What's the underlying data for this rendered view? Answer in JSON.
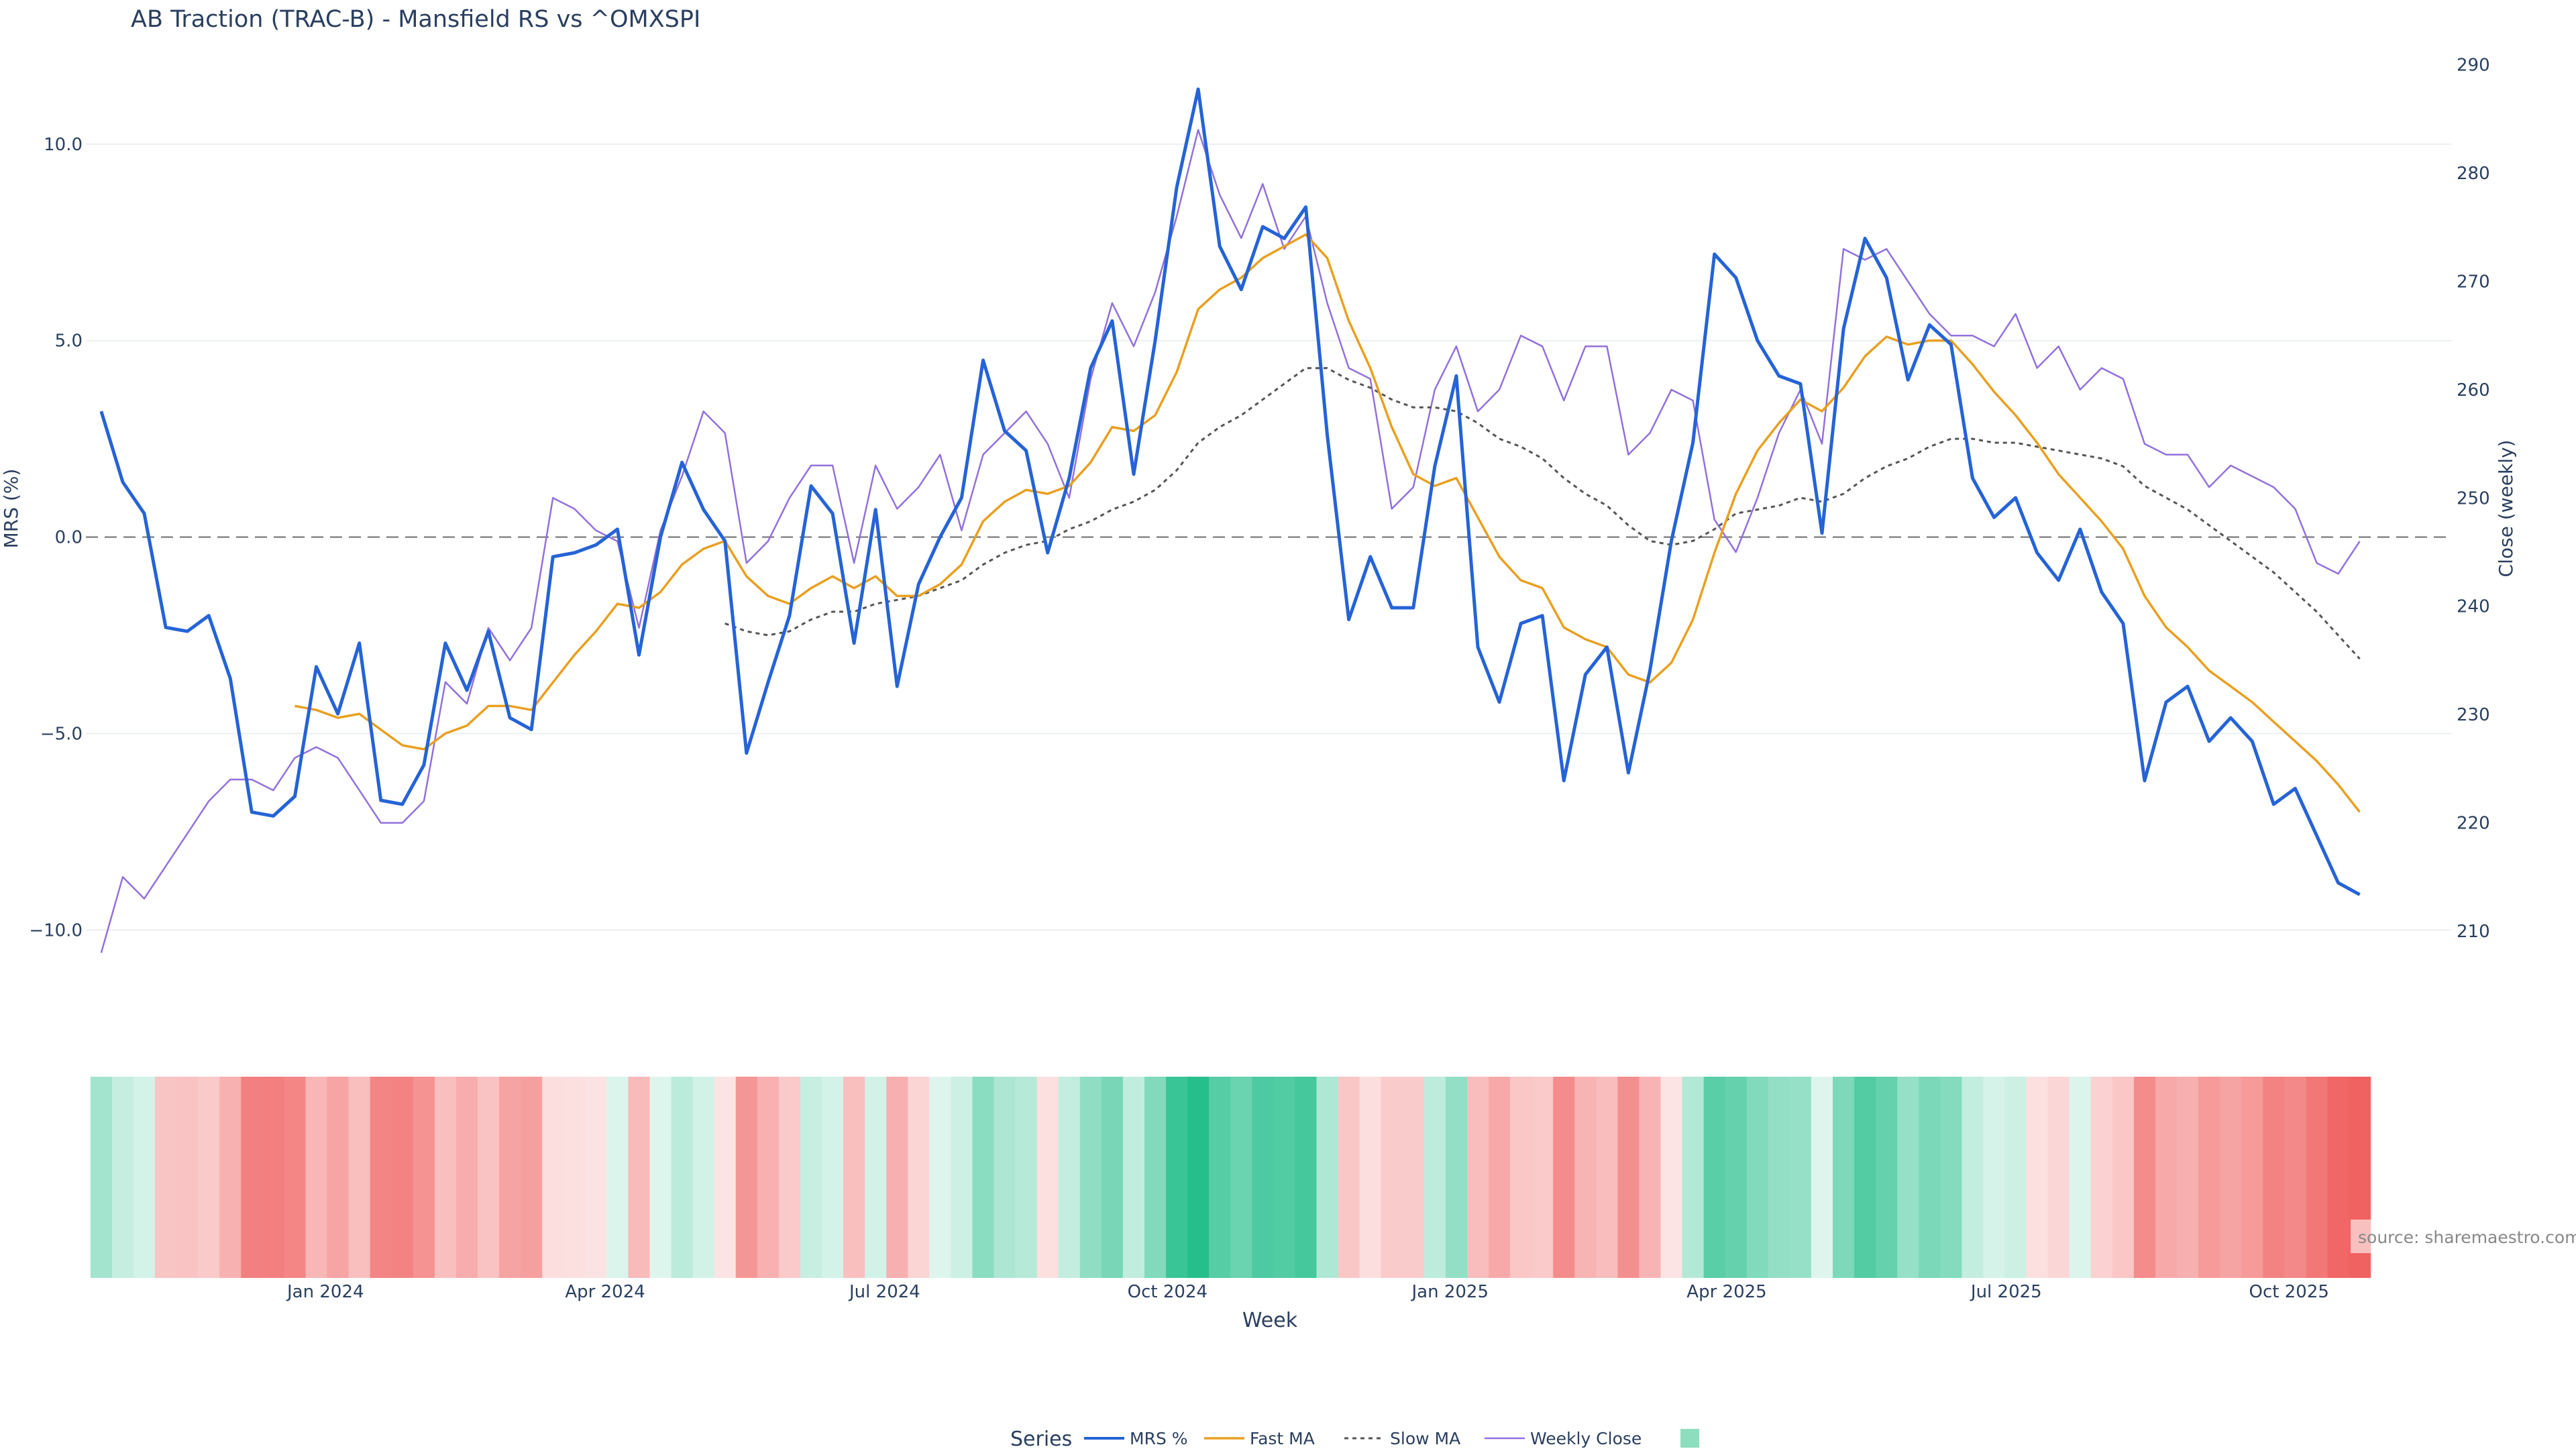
{
  "chart_data": {
    "type": "line",
    "title": "AB Traction (TRAC-B) - Mansfield RS vs ^OMXSPI",
    "xlabel": "Week",
    "ylabel_left": "MRS (%)",
    "ylabel_right": "Close (weekly)",
    "source": "source: sharemaestro.com",
    "legend_title": "Series",
    "legend_position": "bottom-center",
    "grid": true,
    "ylim_left": [
      -11.6,
      12.9
    ],
    "ylim_right": [
      204.3,
      293.2
    ],
    "yticks_left": [
      10.0,
      5.0,
      0.0,
      -5.0,
      -10.0
    ],
    "yticks_left_labels": [
      "10.0",
      "5.0",
      "0.0",
      "−5.0",
      "−10.0"
    ],
    "yticks_right": [
      290,
      280,
      270,
      260,
      250,
      240,
      230,
      220,
      210
    ],
    "x_start": "2023-10-20",
    "x_step_days": 7,
    "xlim": [
      "2023-10-15",
      "2025-11-23"
    ],
    "xticks": [
      {
        "date": "2024-01-01",
        "label": "Jan 2024"
      },
      {
        "date": "2024-04-01",
        "label": "Apr 2024"
      },
      {
        "date": "2024-07-01",
        "label": "Jul 2024"
      },
      {
        "date": "2024-10-01",
        "label": "Oct 2024"
      },
      {
        "date": "2025-01-01",
        "label": "Jan 2025"
      },
      {
        "date": "2025-04-01",
        "label": "Apr 2025"
      },
      {
        "date": "2025-07-01",
        "label": "Jul 2025"
      },
      {
        "date": "2025-10-01",
        "label": "Oct 2025"
      }
    ],
    "zero_line": 0,
    "series": [
      {
        "name": "MRS %",
        "axis": "left",
        "color": "#2563d6",
        "style": "solid-thick",
        "values": [
          3.2,
          1.4,
          0.6,
          -2.3,
          -2.4,
          -2.0,
          -3.6,
          -7.0,
          -7.1,
          -6.6,
          -3.3,
          -4.5,
          -2.7,
          -6.7,
          -6.8,
          -5.8,
          -2.7,
          -3.9,
          -2.4,
          -4.6,
          -4.9,
          -0.5,
          -0.4,
          -0.2,
          0.2,
          -3.0,
          0.0,
          1.9,
          0.7,
          -0.1,
          -5.5,
          -3.7,
          -2.0,
          1.3,
          0.6,
          -2.7,
          0.7,
          -3.8,
          -1.2,
          0.0,
          1.0,
          4.5,
          2.7,
          2.2,
          -0.4,
          1.5,
          4.3,
          5.5,
          1.6,
          5.0,
          8.9,
          11.4,
          7.4,
          6.3,
          7.9,
          7.6,
          8.4,
          2.6,
          -2.1,
          -0.5,
          -1.8,
          -1.8,
          1.8,
          4.1,
          -2.8,
          -4.2,
          -2.2,
          -2.0,
          -6.2,
          -3.5,
          -2.8,
          -6.0,
          -3.4,
          -0.1,
          2.4,
          7.2,
          6.6,
          5.0,
          4.1,
          3.9,
          0.1,
          5.3,
          7.6,
          6.6,
          4.0,
          5.4,
          4.9,
          1.5,
          0.5,
          1.0,
          -0.4,
          -1.1,
          0.2,
          -1.4,
          -2.2,
          -6.2,
          -4.2,
          -3.8,
          -5.2,
          -4.6,
          -5.2,
          -6.8,
          -6.4,
          -7.6,
          -8.8,
          -9.1
        ]
      },
      {
        "name": "Fast MA",
        "axis": "left",
        "color": "#e8a020",
        "style": "solid",
        "values": [
          null,
          null,
          null,
          null,
          null,
          null,
          null,
          null,
          null,
          -4.3,
          -4.4,
          -4.6,
          -4.5,
          -4.9,
          -5.3,
          -5.4,
          -5.0,
          -4.8,
          -4.3,
          -4.3,
          -4.4,
          -3.7,
          -3.0,
          -2.4,
          -1.7,
          -1.8,
          -1.4,
          -0.7,
          -0.3,
          -0.1,
          -1.0,
          -1.5,
          -1.7,
          -1.3,
          -1.0,
          -1.3,
          -1.0,
          -1.5,
          -1.5,
          -1.2,
          -0.7,
          0.4,
          0.9,
          1.2,
          1.1,
          1.3,
          1.9,
          2.8,
          2.7,
          3.1,
          4.2,
          5.8,
          6.3,
          6.6,
          7.1,
          7.4,
          7.7,
          7.1,
          5.5,
          4.3,
          2.8,
          1.6,
          1.3,
          1.5,
          0.5,
          -0.5,
          -1.1,
          -1.3,
          -2.3,
          -2.6,
          -2.8,
          -3.5,
          -3.7,
          -3.2,
          -2.1,
          -0.4,
          1.1,
          2.2,
          2.9,
          3.5,
          3.2,
          3.8,
          4.6,
          5.1,
          4.9,
          5.0,
          5.0,
          4.4,
          3.7,
          3.1,
          2.4,
          1.6,
          1.0,
          0.4,
          -0.3,
          -1.5,
          -2.3,
          -2.8,
          -3.4,
          -3.8,
          -4.2,
          -4.7,
          -5.2,
          -5.7,
          -6.3,
          -7.0
        ]
      },
      {
        "name": "Slow MA",
        "axis": "left",
        "color": "#555555",
        "style": "dotted",
        "values": [
          null,
          null,
          null,
          null,
          null,
          null,
          null,
          null,
          null,
          null,
          null,
          null,
          null,
          null,
          null,
          null,
          null,
          null,
          null,
          null,
          null,
          null,
          null,
          null,
          null,
          null,
          null,
          null,
          null,
          -2.2,
          -2.4,
          -2.5,
          -2.4,
          -2.1,
          -1.9,
          -1.9,
          -1.7,
          -1.6,
          -1.5,
          -1.3,
          -1.1,
          -0.7,
          -0.4,
          -0.2,
          -0.1,
          0.2,
          0.4,
          0.7,
          0.9,
          1.2,
          1.7,
          2.4,
          2.8,
          3.1,
          3.5,
          3.9,
          4.3,
          4.3,
          4.0,
          3.8,
          3.5,
          3.3,
          3.3,
          3.2,
          2.9,
          2.5,
          2.3,
          2.0,
          1.5,
          1.1,
          0.8,
          0.3,
          -0.1,
          -0.2,
          -0.1,
          0.2,
          0.6,
          0.7,
          0.8,
          1.0,
          0.9,
          1.1,
          1.5,
          1.8,
          2.0,
          2.3,
          2.5,
          2.5,
          2.4,
          2.4,
          2.3,
          2.2,
          2.1,
          2.0,
          1.8,
          1.3,
          1.0,
          0.7,
          0.3,
          -0.1,
          -0.5,
          -0.9,
          -1.4,
          -1.9,
          -2.5,
          -3.1
        ]
      },
      {
        "name": "Weekly Close",
        "axis": "right",
        "color": "#9370db",
        "style": "solid-thin",
        "values": [
          208,
          215,
          213,
          216,
          219,
          222,
          224,
          224,
          223,
          226,
          227,
          226,
          223,
          220,
          220,
          222,
          233,
          231,
          238,
          235,
          238,
          250,
          249,
          247,
          246,
          238,
          247,
          252,
          258,
          256,
          244,
          246,
          250,
          253,
          253,
          244,
          253,
          249,
          251,
          254,
          247,
          254,
          256,
          258,
          255,
          250,
          261,
          268,
          264,
          269,
          276,
          284,
          278,
          274,
          279,
          273,
          276,
          268,
          262,
          261,
          249,
          251,
          260,
          264,
          258,
          260,
          265,
          264,
          259,
          264,
          264,
          254,
          256,
          260,
          259,
          248,
          245,
          250,
          256,
          260,
          255,
          273,
          272,
          273,
          270,
          267,
          265,
          265,
          264,
          267,
          262,
          264,
          260,
          262,
          261,
          255,
          254,
          254,
          251,
          253,
          252,
          251,
          249,
          244,
          243,
          246
        ]
      }
    ],
    "heatmap": {
      "metric": "MRS %",
      "color_scale": {
        "negative": "#ef5555",
        "neutral": "#ffffff",
        "positive": "#26bf8c",
        "max_abs": 10
      }
    },
    "legend": [
      "MRS %",
      "Fast MA",
      "Slow MA",
      "Weekly Close",
      ""
    ]
  }
}
